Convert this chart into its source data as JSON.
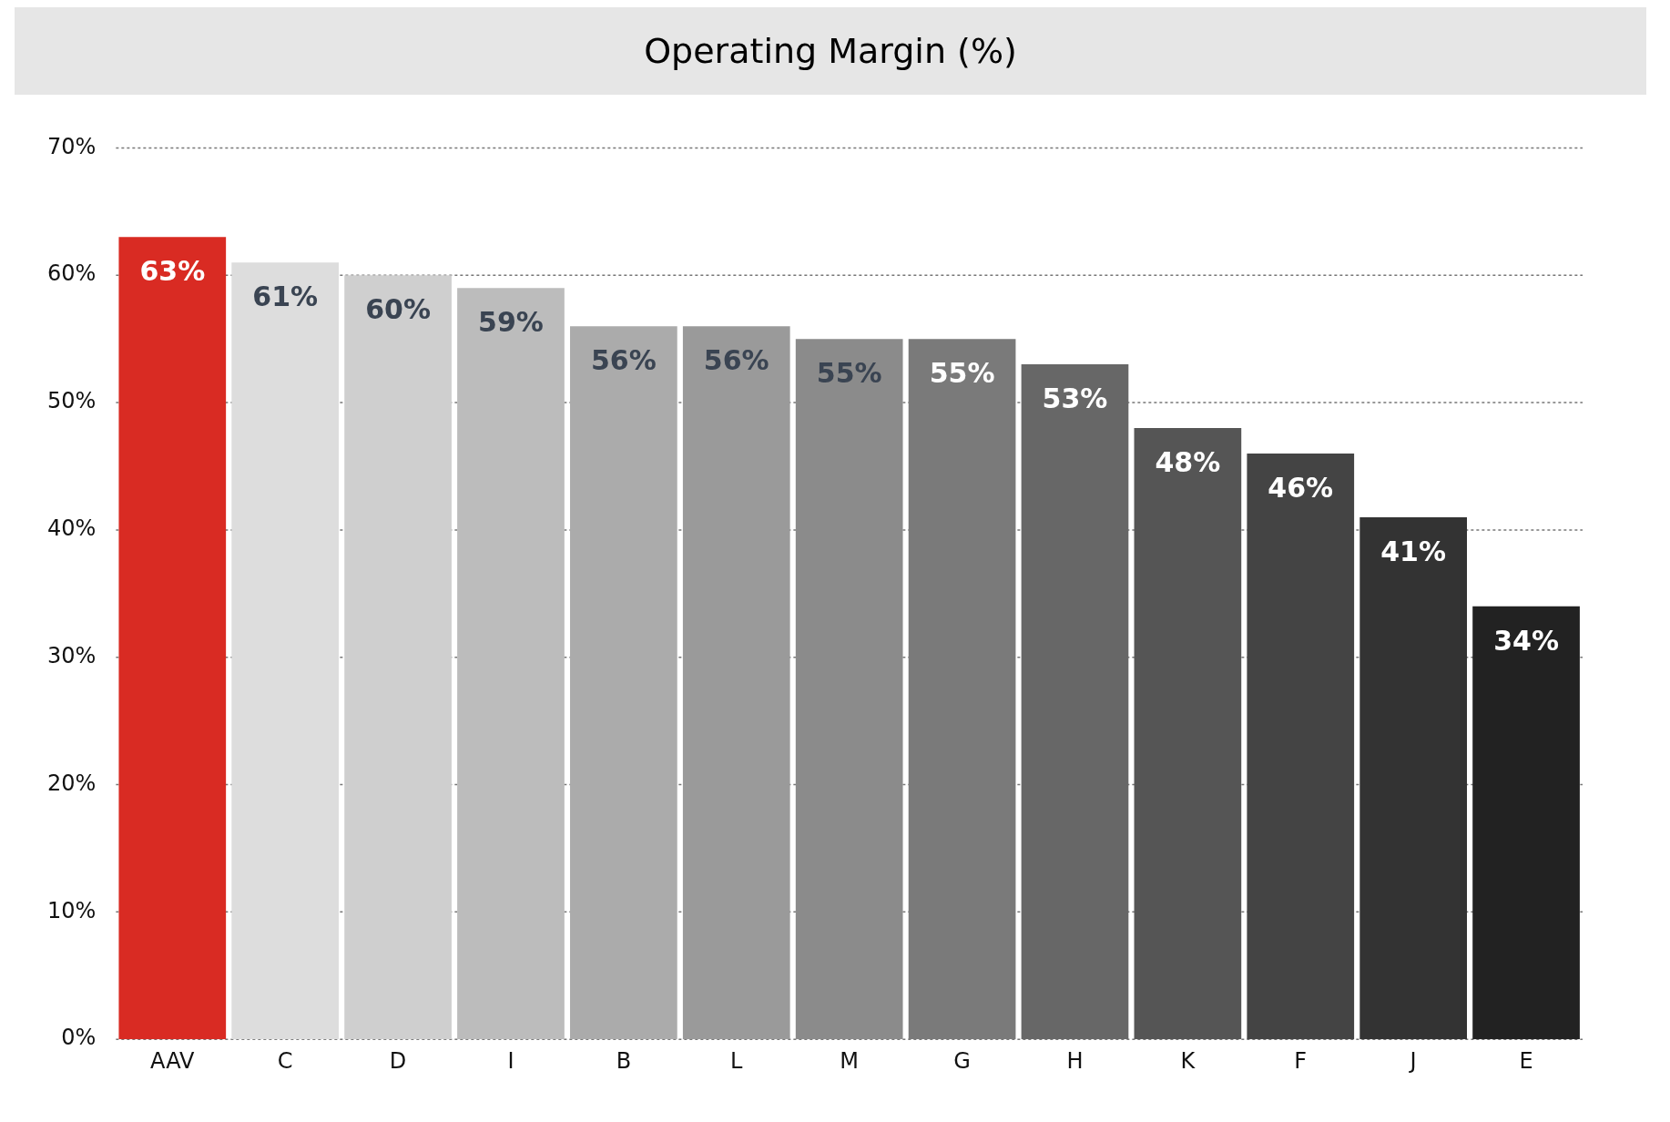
{
  "chart_data": {
    "type": "bar",
    "title": "Operating Margin (%)",
    "categories": [
      "AAV",
      "C",
      "D",
      "I",
      "B",
      "L",
      "M",
      "G",
      "H",
      "K",
      "F",
      "J",
      "E"
    ],
    "values": [
      63,
      61,
      60,
      59,
      56,
      56,
      55,
      55,
      53,
      48,
      46,
      41,
      34
    ],
    "colors": [
      "#d92b23",
      "#dddddd",
      "#cfcfcf",
      "#bcbcbc",
      "#ababab",
      "#9a9a9a",
      "#8b8b8b",
      "#7a7a7a",
      "#676767",
      "#555555",
      "#444444",
      "#333333",
      "#222222"
    ],
    "value_labels": [
      "63%",
      "61%",
      "60%",
      "59%",
      "56%",
      "56%",
      "55%",
      "55%",
      "53%",
      "48%",
      "46%",
      "41%",
      "34%"
    ],
    "ylim": [
      0,
      70
    ],
    "yticks": [
      {
        "value": 0,
        "label": "0%"
      },
      {
        "value": 10,
        "label": "10%"
      },
      {
        "value": 20,
        "label": "20%"
      },
      {
        "value": 30,
        "label": "30%"
      },
      {
        "value": 40,
        "label": "40%"
      },
      {
        "value": 50,
        "label": "50%"
      },
      {
        "value": 60,
        "label": "60%"
      },
      {
        "value": 70,
        "label": "70%"
      }
    ],
    "grid": "y",
    "legend": false
  }
}
